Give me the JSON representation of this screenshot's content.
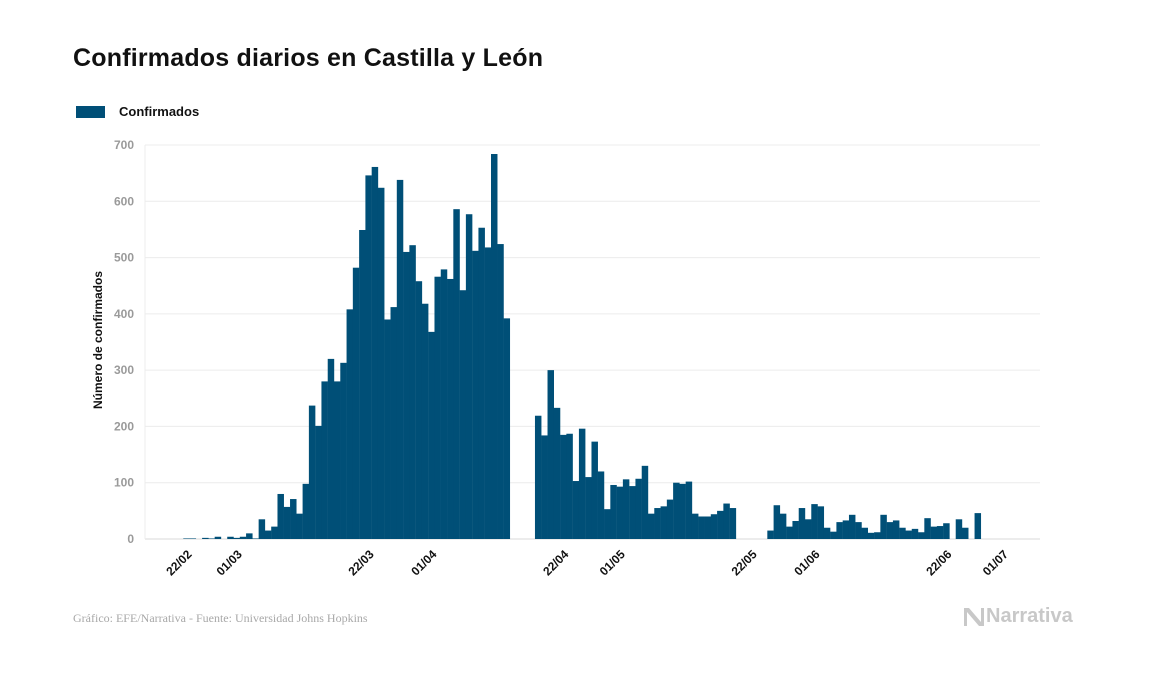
{
  "chart_data": {
    "type": "bar",
    "title": "Confirmados diarios en Castilla y León",
    "xlabel": "",
    "ylabel": "Número de confirmados",
    "ylim": [
      0,
      700
    ],
    "yticks": [
      0,
      100,
      200,
      300,
      400,
      500,
      600,
      700
    ],
    "grid": true,
    "legend": {
      "position": "top-left",
      "entries": [
        {
          "label": "Confirmados",
          "color": "#004f77"
        }
      ]
    },
    "xtick_labels": [
      {
        "date": "22/02",
        "label": "22/02"
      },
      {
        "date": "01/03",
        "label": "01/03"
      },
      {
        "date": "22/03",
        "label": "22/03"
      },
      {
        "date": "01/04",
        "label": "01/04"
      },
      {
        "date": "22/04",
        "label": "22/04"
      },
      {
        "date": "01/05",
        "label": "01/05"
      },
      {
        "date": "22/05",
        "label": "22/05"
      },
      {
        "date": "01/06",
        "label": "01/06"
      },
      {
        "date": "22/06",
        "label": "22/06"
      },
      {
        "date": "01/07",
        "label": "01/07"
      }
    ],
    "start_date": "21/02",
    "series": [
      {
        "name": "Confirmados",
        "color": "#004f77",
        "values": [
          0,
          1,
          1,
          0,
          2,
          1,
          4,
          0,
          4,
          2,
          4,
          10,
          1,
          35,
          15,
          22,
          80,
          57,
          71,
          45,
          98,
          237,
          201,
          280,
          320,
          280,
          313,
          408,
          482,
          549,
          646,
          661,
          624,
          390,
          412,
          638,
          510,
          522,
          458,
          418,
          368,
          466,
          479,
          462,
          586,
          442,
          577,
          512,
          553,
          518,
          684,
          524,
          392,
          0,
          0,
          0,
          0,
          219,
          184,
          300,
          233,
          185,
          187,
          103,
          196,
          110,
          173,
          120,
          53,
          96,
          93,
          106,
          94,
          107,
          130,
          45,
          55,
          58,
          70,
          100,
          98,
          102,
          45,
          40,
          40,
          44,
          50,
          63,
          55,
          0,
          0,
          0,
          0,
          0,
          15,
          60,
          45,
          22,
          32,
          55,
          35,
          62,
          58,
          20,
          13,
          30,
          33,
          43,
          30,
          20,
          11,
          12,
          43,
          30,
          33,
          20,
          15,
          18,
          12,
          37,
          22,
          23,
          28,
          0,
          35,
          20,
          0,
          46
        ]
      }
    ]
  },
  "footer": {
    "source": "Gráfico: EFE/Narrativa - Fuente: Universidad Johns Hopkins"
  },
  "logo": {
    "text": "Narrativa",
    "icon": "narrativa-n-icon"
  }
}
